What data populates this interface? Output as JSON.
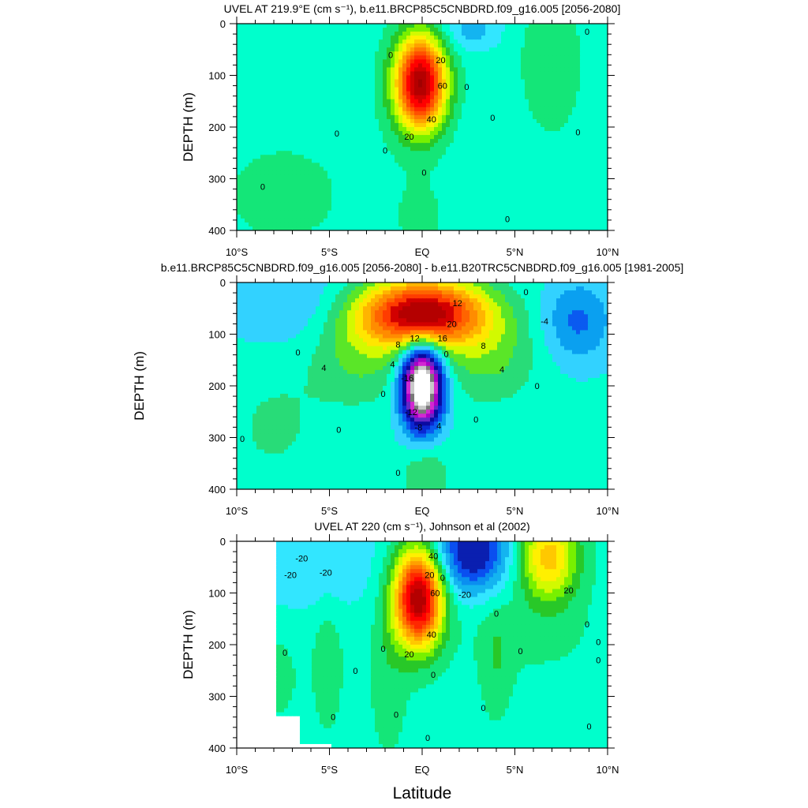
{
  "chart_data": [
    {
      "type": "heatmap",
      "subtype": "filled-contour",
      "title": "UVEL AT 219.9°E (cm s⁻¹), b.e11.BRCP85C5CNBDRD.f09_g16.005 [2056-2080]",
      "xlabel": "",
      "ylabel": "DEPTH (m)",
      "xlim": [
        -10,
        10
      ],
      "ylim": [
        400,
        0
      ],
      "x_ticks": [
        {
          "v": -10,
          "label": "10°S"
        },
        {
          "v": -5,
          "label": "5°S"
        },
        {
          "v": 0,
          "label": "EQ"
        },
        {
          "v": 5,
          "label": "5°N"
        },
        {
          "v": 10,
          "label": "10°N"
        }
      ],
      "y_ticks": [
        {
          "v": 0,
          "label": "0"
        },
        {
          "v": 100,
          "label": "100"
        },
        {
          "v": 200,
          "label": "200"
        },
        {
          "v": 300,
          "label": "300"
        },
        {
          "v": 400,
          "label": "400"
        }
      ],
      "contour_interval": 5,
      "color_levels": [
        -25,
        -20,
        -15,
        -10,
        -5,
        0,
        5,
        10,
        15,
        20,
        25,
        30,
        35,
        40,
        45,
        50,
        55,
        60,
        65
      ],
      "colors": [
        "#0a1fb0",
        "#0a4ff0",
        "#0a8ff0",
        "#14b4f0",
        "#32e6ff",
        "#00ffcc",
        "#14e678",
        "#28c828",
        "#78f000",
        "#d2fa00",
        "#fff000",
        "#ffc800",
        "#ffa000",
        "#ff7800",
        "#ff5000",
        "#ff2800",
        "#ff0000",
        "#d20000",
        "#b40000",
        "#a00000"
      ],
      "field": [
        {
          "type": "gauss",
          "x": -0.1,
          "y": 115,
          "sx": 0.95,
          "sy": 62,
          "amp": 68
        },
        {
          "type": "gauss",
          "x": 2.6,
          "y": 10,
          "sx": 1.2,
          "sy": 30,
          "amp": -10
        },
        {
          "type": "gauss",
          "x": 6.8,
          "y": 80,
          "sx": 1.3,
          "sy": 110,
          "amp": 5
        },
        {
          "type": "gauss",
          "x": -7.5,
          "y": 330,
          "sx": 3.0,
          "sy": 90,
          "amp": 3
        },
        {
          "type": "gauss",
          "x": 0.0,
          "y": 370,
          "sx": 1.2,
          "sy": 60,
          "amp": 3
        },
        {
          "type": "gauss",
          "x": 4.0,
          "y": 250,
          "sx": 2.0,
          "sy": 150,
          "amp": -1.5
        }
      ],
      "bg": -2,
      "contour_labels": [
        {
          "x": -1.7,
          "y": 60,
          "text": "0"
        },
        {
          "x": 1.0,
          "y": 70,
          "text": "20"
        },
        {
          "x": 1.1,
          "y": 120,
          "text": "60"
        },
        {
          "x": 0.5,
          "y": 185,
          "text": "40"
        },
        {
          "x": -0.7,
          "y": 218,
          "text": "20"
        },
        {
          "x": -2.0,
          "y": 245,
          "text": "0"
        },
        {
          "x": -4.6,
          "y": 212,
          "text": "0"
        },
        {
          "x": -8.6,
          "y": 315,
          "text": "0"
        },
        {
          "x": 0.1,
          "y": 288,
          "text": "0"
        },
        {
          "x": 2.4,
          "y": 122,
          "text": "0"
        },
        {
          "x": 3.8,
          "y": 182,
          "text": "0"
        },
        {
          "x": 8.4,
          "y": 210,
          "text": "0"
        },
        {
          "x": 8.9,
          "y": 15,
          "text": "0"
        },
        {
          "x": 4.6,
          "y": 378,
          "text": "0"
        }
      ]
    },
    {
      "type": "heatmap",
      "subtype": "filled-contour",
      "title": "b.e11.BRCP85C5CNBDRD.f09_g16.005 [2056-2080] - b.e11.B20TRC5CNBDRD.f09_g16.005 [1981-2005]",
      "xlabel": "",
      "ylabel": "DEPTH (m)",
      "xlim": [
        -10,
        10
      ],
      "ylim": [
        400,
        0
      ],
      "x_ticks": [
        {
          "v": -10,
          "label": "10°S"
        },
        {
          "v": -5,
          "label": "5°S"
        },
        {
          "v": 0,
          "label": "EQ"
        },
        {
          "v": 5,
          "label": "5°N"
        },
        {
          "v": 10,
          "label": "10°N"
        }
      ],
      "y_ticks": [
        {
          "v": 0,
          "label": "0"
        },
        {
          "v": 100,
          "label": "100"
        },
        {
          "v": 200,
          "label": "200"
        },
        {
          "v": 300,
          "label": "300"
        },
        {
          "v": 400,
          "label": "400"
        }
      ],
      "contour_interval": 2,
      "color_levels": [
        -22,
        -20,
        -18,
        -16,
        -14,
        -12,
        -10,
        -8,
        -6,
        -4,
        -2,
        0,
        2,
        4,
        6,
        8,
        10,
        12,
        14,
        16,
        18,
        20
      ],
      "colors": [
        "#ffffff",
        "#ffffff",
        "#c8c8c8",
        "#787878",
        "#d228d2",
        "#aa00c8",
        "#6428c8",
        "#0a0aa0",
        "#0a28d2",
        "#0a5af0",
        "#0aa0f0",
        "#32d2ff",
        "#00ffcc",
        "#28dc78",
        "#5ae628",
        "#d2fa00",
        "#ffe600",
        "#ffb400",
        "#ff8c00",
        "#ff6400",
        "#ff3c00",
        "#d20000",
        "#b40000"
      ],
      "field": [
        {
          "type": "gauss",
          "x": 0.0,
          "y": 60,
          "sx": 2.3,
          "sy": 45,
          "amp": 22
        },
        {
          "type": "gauss",
          "x": 0.0,
          "y": 200,
          "sx": 0.75,
          "sy": 55,
          "amp": -26
        },
        {
          "type": "gauss",
          "x": -3.4,
          "y": 140,
          "sx": 1.8,
          "sy": 65,
          "amp": 4
        },
        {
          "type": "gauss",
          "x": 3.6,
          "y": 140,
          "sx": 1.8,
          "sy": 65,
          "amp": 4
        },
        {
          "type": "gauss",
          "x": 8.4,
          "y": 75,
          "sx": 1.3,
          "sy": 55,
          "amp": -5
        },
        {
          "type": "gauss",
          "x": 0.2,
          "y": 380,
          "sx": 0.9,
          "sy": 45,
          "amp": 3.5
        },
        {
          "type": "gauss",
          "x": -8.0,
          "y": 280,
          "sx": 2.0,
          "sy": 90,
          "amp": 1.8
        },
        {
          "type": "gauss",
          "x": -7.0,
          "y": 40,
          "sx": 2.5,
          "sy": 60,
          "amp": -2.5
        }
      ],
      "bg": 0.5,
      "contour_labels": [
        {
          "x": 1.9,
          "y": 40,
          "text": "12"
        },
        {
          "x": 1.6,
          "y": 80,
          "text": "20"
        },
        {
          "x": -0.4,
          "y": 108,
          "text": "12"
        },
        {
          "x": 1.1,
          "y": 108,
          "text": "16"
        },
        {
          "x": -1.3,
          "y": 120,
          "text": "8"
        },
        {
          "x": 3.3,
          "y": 122,
          "text": "8"
        },
        {
          "x": -5.3,
          "y": 165,
          "text": "4"
        },
        {
          "x": 4.3,
          "y": 168,
          "text": "4"
        },
        {
          "x": -1.6,
          "y": 158,
          "text": "4"
        },
        {
          "x": 1.3,
          "y": 138,
          "text": "0"
        },
        {
          "x": -0.8,
          "y": 185,
          "text": "-16"
        },
        {
          "x": -0.6,
          "y": 250,
          "text": "-12"
        },
        {
          "x": -0.2,
          "y": 280,
          "text": "-8"
        },
        {
          "x": 0.9,
          "y": 277,
          "text": "4"
        },
        {
          "x": -2.1,
          "y": 215,
          "text": "0"
        },
        {
          "x": -6.7,
          "y": 135,
          "text": "0"
        },
        {
          "x": -4.5,
          "y": 285,
          "text": "0"
        },
        {
          "x": -9.7,
          "y": 302,
          "text": "0"
        },
        {
          "x": 2.9,
          "y": 265,
          "text": "0"
        },
        {
          "x": 6.2,
          "y": 200,
          "text": "0"
        },
        {
          "x": 5.6,
          "y": 18,
          "text": "0"
        },
        {
          "x": 6.6,
          "y": 75,
          "text": "-4"
        },
        {
          "x": -1.3,
          "y": 368,
          "text": "0"
        }
      ]
    },
    {
      "type": "heatmap",
      "subtype": "filled-contour",
      "title": "UVEL AT 220 (cm s⁻¹), Johnson et al (2002)",
      "xlabel": "Latitude",
      "ylabel": "DEPTH (m)",
      "xlim": [
        -10,
        10
      ],
      "ylim": [
        400,
        0
      ],
      "x_ticks": [
        {
          "v": -10,
          "label": "10°S"
        },
        {
          "v": -5,
          "label": "5°S"
        },
        {
          "v": 0,
          "label": "EQ"
        },
        {
          "v": 5,
          "label": "5°N"
        },
        {
          "v": 10,
          "label": "10°N"
        }
      ],
      "y_ticks": [
        {
          "v": 0,
          "label": "0"
        },
        {
          "v": 100,
          "label": "100"
        },
        {
          "v": 200,
          "label": "200"
        },
        {
          "v": 300,
          "label": "300"
        },
        {
          "v": 400,
          "label": "400"
        }
      ],
      "contour_interval": 5,
      "color_levels": [
        -25,
        -20,
        -15,
        -10,
        -5,
        0,
        5,
        10,
        15,
        20,
        25,
        30,
        35,
        40,
        45,
        50,
        55,
        60,
        65
      ],
      "colors": [
        "#0a1fb0",
        "#0a4ff0",
        "#0a8ff0",
        "#14b4f0",
        "#32e6ff",
        "#00ffcc",
        "#14e678",
        "#28c828",
        "#78f000",
        "#d2fa00",
        "#fff000",
        "#ffc800",
        "#ffa000",
        "#ff7800",
        "#ff5000",
        "#ff2800",
        "#ff0000",
        "#d20000",
        "#b40000",
        "#a00000"
      ],
      "field": [
        {
          "type": "gauss",
          "x": -0.2,
          "y": 110,
          "sx": 0.9,
          "sy": 65,
          "amp": 68
        },
        {
          "type": "gauss",
          "x": 2.7,
          "y": 20,
          "sx": 1.4,
          "sy": 55,
          "amp": -30
        },
        {
          "type": "gauss",
          "x": -5.8,
          "y": 40,
          "sx": 2.8,
          "sy": 70,
          "amp": -8
        },
        {
          "type": "gauss",
          "x": 6.8,
          "y": 30,
          "sx": 1.1,
          "sy": 60,
          "amp": 30
        },
        {
          "type": "gauss",
          "x": 4.0,
          "y": 230,
          "sx": 0.6,
          "sy": 80,
          "amp": 6
        },
        {
          "type": "gauss",
          "x": -5.1,
          "y": 230,
          "sx": 0.55,
          "sy": 90,
          "amp": 6
        },
        {
          "type": "gauss",
          "x": -7.8,
          "y": 260,
          "sx": 0.8,
          "sy": 60,
          "amp": 4
        },
        {
          "type": "gauss",
          "x": -1.8,
          "y": 250,
          "sx": 0.7,
          "sy": 120,
          "amp": 5
        },
        {
          "type": "gauss",
          "x": 6.0,
          "y": 180,
          "sx": 2.5,
          "sy": 60,
          "amp": 3
        }
      ],
      "bg": -2,
      "mask": {
        "left_lon": -7.8,
        "left_step_depth": 335,
        "left_step_lon": -6.6,
        "bottom_left_lon": -4.8,
        "bottom_depth": 395,
        "right_lon": 9.9
      },
      "contour_labels": [
        {
          "x": -6.5,
          "y": 33,
          "text": "-20"
        },
        {
          "x": -5.2,
          "y": 60,
          "text": "-20"
        },
        {
          "x": -7.1,
          "y": 65,
          "text": "-20"
        },
        {
          "x": 0.6,
          "y": 28,
          "text": "40"
        },
        {
          "x": 0.4,
          "y": 65,
          "text": "20"
        },
        {
          "x": 1.1,
          "y": 70,
          "text": "0"
        },
        {
          "x": 2.3,
          "y": 103,
          "text": "-20"
        },
        {
          "x": 0.7,
          "y": 100,
          "text": "60"
        },
        {
          "x": 0.5,
          "y": 180,
          "text": "40"
        },
        {
          "x": -0.7,
          "y": 218,
          "text": "20"
        },
        {
          "x": 0.6,
          "y": 258,
          "text": "0"
        },
        {
          "x": -2.1,
          "y": 208,
          "text": "0"
        },
        {
          "x": -7.4,
          "y": 215,
          "text": "0"
        },
        {
          "x": -4.8,
          "y": 340,
          "text": "0"
        },
        {
          "x": -3.6,
          "y": 250,
          "text": "0"
        },
        {
          "x": -1.4,
          "y": 335,
          "text": "0"
        },
        {
          "x": 3.3,
          "y": 322,
          "text": "0"
        },
        {
          "x": 4.0,
          "y": 140,
          "text": "0"
        },
        {
          "x": 5.3,
          "y": 212,
          "text": "0"
        },
        {
          "x": 7.9,
          "y": 95,
          "text": "20"
        },
        {
          "x": 8.9,
          "y": 160,
          "text": "0"
        },
        {
          "x": 9.5,
          "y": 195,
          "text": "0"
        },
        {
          "x": 9.5,
          "y": 230,
          "text": "0"
        },
        {
          "x": 9.0,
          "y": 358,
          "text": "0"
        },
        {
          "x": 0.3,
          "y": 380,
          "text": "0"
        }
      ]
    }
  ]
}
